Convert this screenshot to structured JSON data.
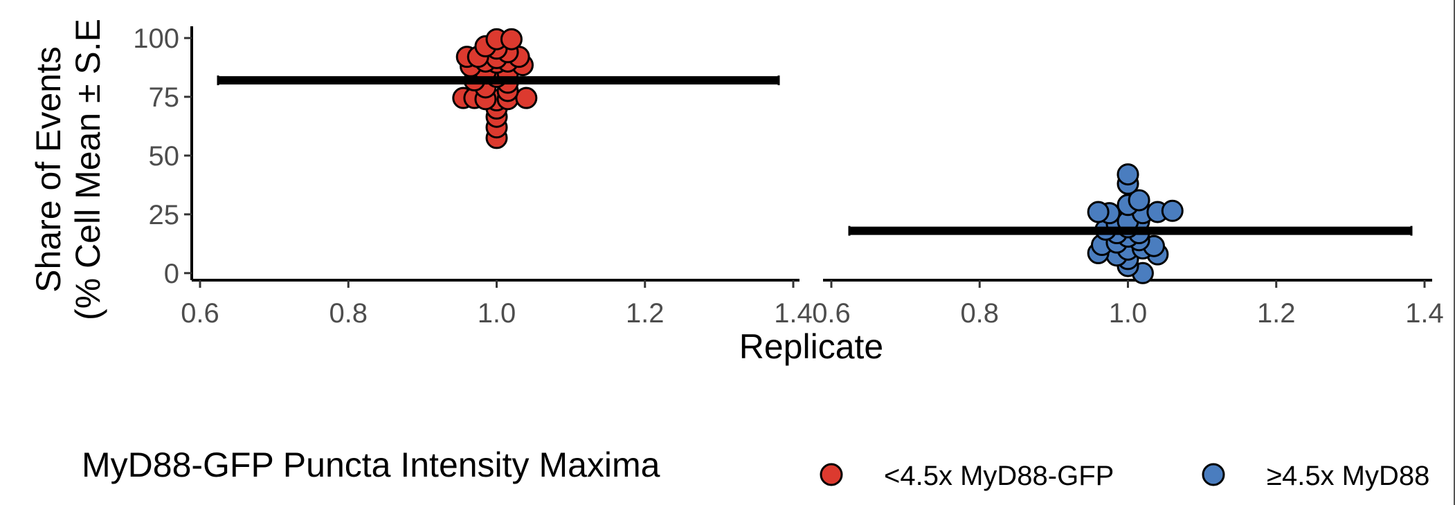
{
  "chart_data": {
    "type": "scatter",
    "xlabel": "Replicate",
    "ylabel": [
      "Share of Events",
      "(% Cell Mean ± S.E"
    ],
    "ylim": [
      -3,
      105
    ],
    "yticks": [
      0,
      25,
      50,
      75,
      100
    ],
    "xlim": [
      0.6,
      1.4
    ],
    "xticks": [
      "0.6",
      "0.8",
      "1.0",
      "1.2",
      "1.4"
    ],
    "grid": false,
    "legend": {
      "title": "MyD88-GFP Puncta Intensity Maxima",
      "position": "bottom",
      "entries": [
        {
          "label": "<4.5x MyD88-GFP",
          "color": "#DC3A2F"
        },
        {
          "label": "≥4.5x MyD88",
          "color": "#4A7DBF"
        }
      ]
    },
    "panels": [
      {
        "series": "<4.5x MyD88-GFP",
        "color": "#DC3A2F",
        "mean": 82,
        "points": [
          {
            "x": 1.0,
            "y": 57.5
          },
          {
            "x": 1.0,
            "y": 62
          },
          {
            "x": 1.0,
            "y": 66.5
          },
          {
            "x": 1.0,
            "y": 70
          },
          {
            "x": 1.0,
            "y": 73.5
          },
          {
            "x": 0.955,
            "y": 74.5
          },
          {
            "x": 0.97,
            "y": 74.5
          },
          {
            "x": 0.985,
            "y": 74
          },
          {
            "x": 1.015,
            "y": 74
          },
          {
            "x": 1.04,
            "y": 74.5
          },
          {
            "x": 1.015,
            "y": 77.5
          },
          {
            "x": 0.985,
            "y": 79
          },
          {
            "x": 1.015,
            "y": 81
          },
          {
            "x": 0.97,
            "y": 82
          },
          {
            "x": 1.0,
            "y": 83.5
          },
          {
            "x": 1.015,
            "y": 85
          },
          {
            "x": 0.985,
            "y": 85.5
          },
          {
            "x": 0.965,
            "y": 88
          },
          {
            "x": 1.035,
            "y": 88.5
          },
          {
            "x": 1.0,
            "y": 89.5
          },
          {
            "x": 0.985,
            "y": 90
          },
          {
            "x": 1.015,
            "y": 90
          },
          {
            "x": 1.0,
            "y": 91.5
          },
          {
            "x": 0.96,
            "y": 92
          },
          {
            "x": 0.975,
            "y": 92
          },
          {
            "x": 1.03,
            "y": 92
          },
          {
            "x": 1.015,
            "y": 94
          },
          {
            "x": 1.0,
            "y": 95.5
          },
          {
            "x": 0.985,
            "y": 96.5
          },
          {
            "x": 1.0,
            "y": 99.5
          },
          {
            "x": 1.02,
            "y": 99.5
          }
        ]
      },
      {
        "series": "≥4.5x MyD88",
        "color": "#4A7DBF",
        "mean": 18,
        "points": [
          {
            "x": 1.02,
            "y": 0
          },
          {
            "x": 1.0,
            "y": 3
          },
          {
            "x": 1.0,
            "y": 6
          },
          {
            "x": 0.985,
            "y": 7.5
          },
          {
            "x": 1.04,
            "y": 8
          },
          {
            "x": 0.96,
            "y": 8.5
          },
          {
            "x": 1.0,
            "y": 10
          },
          {
            "x": 1.02,
            "y": 10.5
          },
          {
            "x": 1.035,
            "y": 11.5
          },
          {
            "x": 0.965,
            "y": 12
          },
          {
            "x": 0.985,
            "y": 13
          },
          {
            "x": 1.015,
            "y": 14
          },
          {
            "x": 1.0,
            "y": 15.5
          },
          {
            "x": 0.985,
            "y": 17
          },
          {
            "x": 1.015,
            "y": 17
          },
          {
            "x": 0.97,
            "y": 18.5
          },
          {
            "x": 1.0,
            "y": 19.5
          },
          {
            "x": 0.985,
            "y": 21
          },
          {
            "x": 1.015,
            "y": 22
          },
          {
            "x": 1.0,
            "y": 22
          },
          {
            "x": 0.975,
            "y": 25.5
          },
          {
            "x": 1.02,
            "y": 25.5
          },
          {
            "x": 0.96,
            "y": 26
          },
          {
            "x": 1.04,
            "y": 26
          },
          {
            "x": 1.06,
            "y": 26.5
          },
          {
            "x": 1.0,
            "y": 29
          },
          {
            "x": 1.015,
            "y": 31
          },
          {
            "x": 1.0,
            "y": 38
          },
          {
            "x": 1.0,
            "y": 42
          }
        ]
      }
    ]
  }
}
